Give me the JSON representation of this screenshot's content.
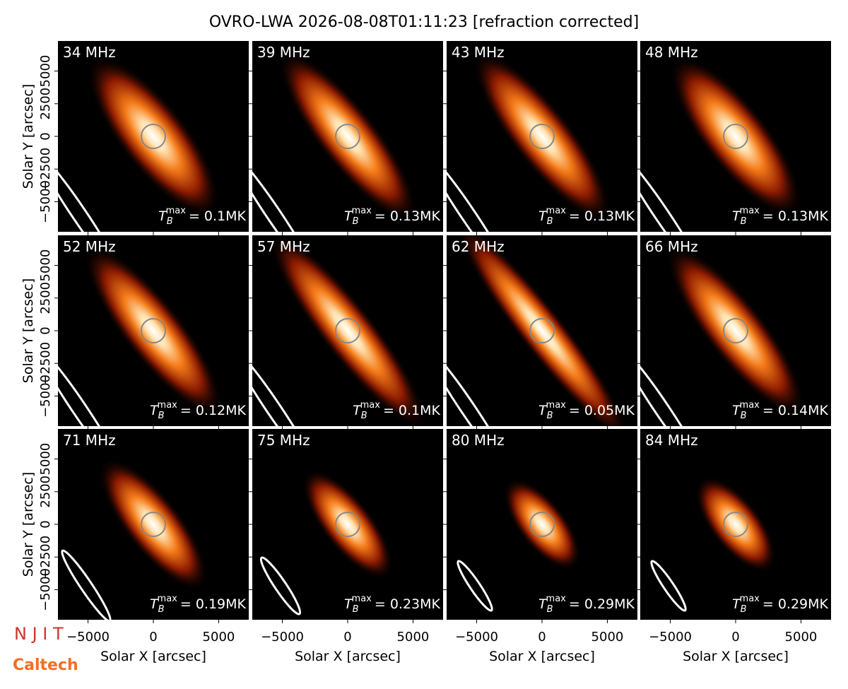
{
  "chart_data": {
    "type": "image_grid",
    "title": "OVRO-LWA 2026-08-08T01:11:23 [refraction corrected]",
    "x_label": "Solar X [arcsec]",
    "y_label": "Solar Y [arcsec]",
    "xlim": [
      -7300,
      7300
    ],
    "ylim": [
      -7300,
      7300
    ],
    "xticks": [
      {
        "value": -5000,
        "label": "−5000"
      },
      0,
      5000
    ],
    "yticks": [
      {
        "value": -5000,
        "label": "−5000"
      },
      {
        "value": -2500,
        "label": "−2500"
      },
      0,
      2500,
      5000
    ],
    "annotation_symbol": "T",
    "annotation_sub": "B",
    "annotation_sup": "max",
    "panels": [
      {
        "label": "34 MHz",
        "annotation": "= 0.1MK"
      },
      {
        "label": "39 MHz",
        "annotation": "= 0.13MK"
      },
      {
        "label": "43 MHz",
        "annotation": "= 0.13MK"
      },
      {
        "label": "48 MHz",
        "annotation": "= 0.13MK"
      },
      {
        "label": "52 MHz",
        "annotation": "= 0.12MK"
      },
      {
        "label": "57 MHz",
        "annotation": "= 0.1MK"
      },
      {
        "label": "62 MHz",
        "annotation": "= 0.05MK"
      },
      {
        "label": "66 MHz",
        "annotation": "= 0.14MK"
      },
      {
        "label": "71 MHz",
        "annotation": "= 0.19MK"
      },
      {
        "label": "75 MHz",
        "annotation": "= 0.23MK"
      },
      {
        "label": "80 MHz",
        "annotation": "= 0.29MK"
      },
      {
        "label": "84 MHz",
        "annotation": "= 0.29MK"
      }
    ],
    "logos": [
      "N J I T",
      "Caltech"
    ]
  }
}
